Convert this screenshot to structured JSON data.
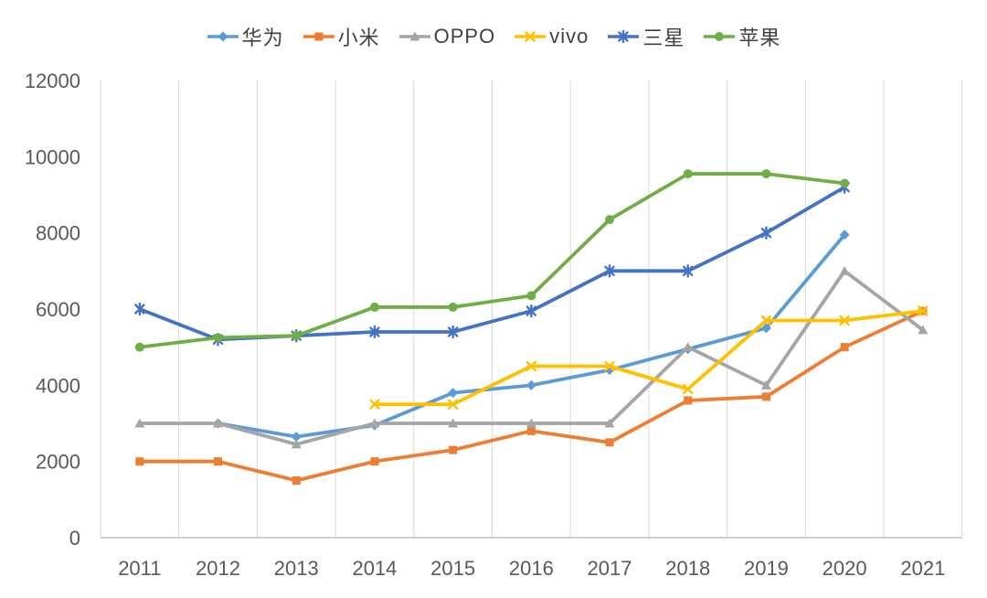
{
  "chart_data": {
    "type": "line",
    "title": "",
    "xlabel": "",
    "ylabel": "",
    "categories": [
      "2011",
      "2012",
      "2013",
      "2014",
      "2015",
      "2016",
      "2017",
      "2018",
      "2019",
      "2020",
      "2021"
    ],
    "series": [
      {
        "id": "huawei",
        "name": "华为",
        "color": "#5B9BD5",
        "marker": "diamond",
        "values": [
          null,
          3000,
          2650,
          2950,
          3800,
          4000,
          4400,
          4950,
          5500,
          7950,
          null
        ]
      },
      {
        "id": "xiaomi",
        "name": "小米",
        "color": "#ED7D31",
        "marker": "square",
        "values": [
          2000,
          2000,
          1500,
          2000,
          2300,
          2800,
          2500,
          3600,
          3700,
          5000,
          5950
        ]
      },
      {
        "id": "oppo",
        "name": "OPPO",
        "color": "#A5A5A5",
        "marker": "triangle",
        "values": [
          3000,
          3000,
          2450,
          3000,
          3000,
          3000,
          3000,
          5000,
          4000,
          7000,
          5450
        ]
      },
      {
        "id": "vivo",
        "name": "vivo",
        "color": "#FFC000",
        "marker": "x",
        "values": [
          null,
          null,
          null,
          3500,
          3500,
          4500,
          4500,
          3900,
          5700,
          5700,
          5950
        ]
      },
      {
        "id": "samsung",
        "name": "三星",
        "color": "#4472C4",
        "marker": "asterisk",
        "values": [
          6000,
          5200,
          5300,
          5400,
          5400,
          5950,
          7000,
          7000,
          8000,
          9200,
          null
        ]
      },
      {
        "id": "apple",
        "name": "苹果",
        "color": "#70AD47",
        "marker": "circle",
        "values": [
          5000,
          5250,
          5300,
          6050,
          6050,
          6350,
          8350,
          9550,
          9550,
          9300,
          null
        ]
      }
    ],
    "ylim": [
      0,
      12000
    ],
    "yticks": [
      0,
      2000,
      4000,
      6000,
      8000,
      10000,
      12000
    ],
    "grid": "vertical-only",
    "legend_position": "top-center",
    "colors": {
      "gridline": "#D9D9D9",
      "axis_line": "#BFBFBF",
      "tick_label": "#595959",
      "legend_label": "#404040",
      "background": "#FFFFFF"
    }
  }
}
